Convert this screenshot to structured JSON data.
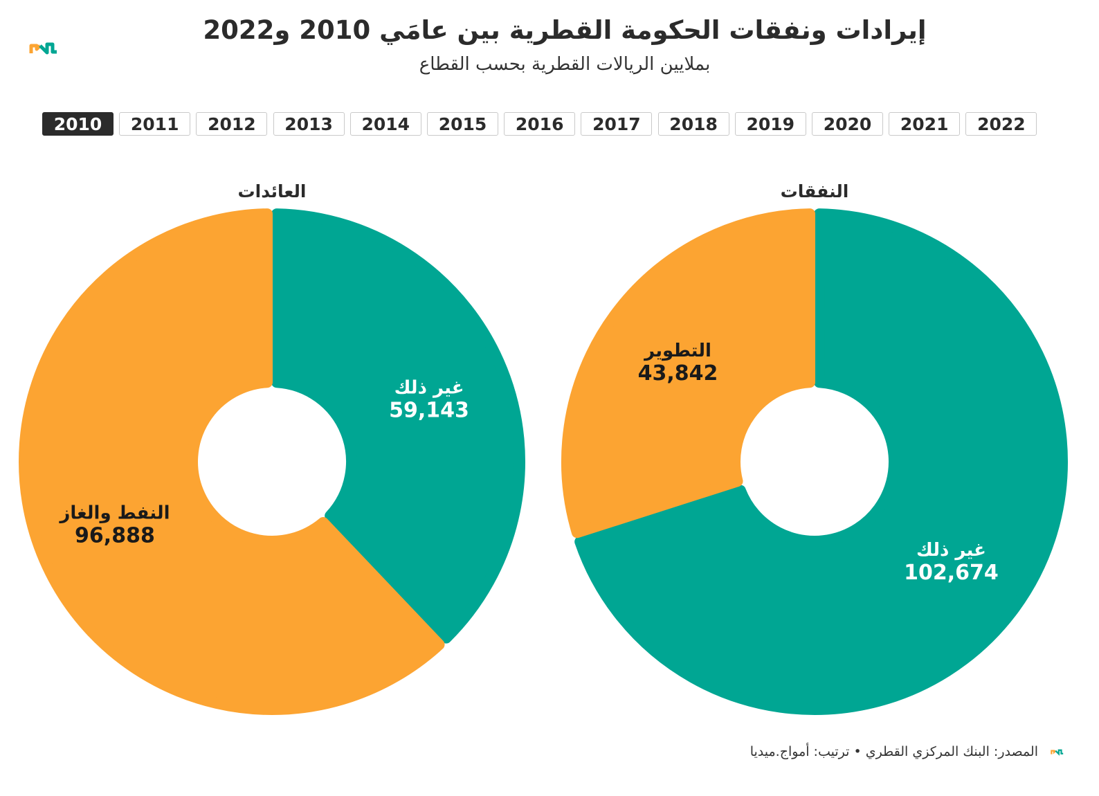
{
  "title": "إيرادات ونفقات الحكومة القطرية بين عامَي 2010 و2022",
  "subtitle": "بملايين الريالات القطرية بحسب القطاع",
  "years": [
    "2010",
    "2011",
    "2012",
    "2013",
    "2014",
    "2015",
    "2016",
    "2017",
    "2018",
    "2019",
    "2020",
    "2021",
    "2022"
  ],
  "selected_year": "2010",
  "source": "المصدر: البنك المركزي القطري • ترتيب: أمواج.ميديا",
  "colors": {
    "teal": "#00A693",
    "orange": "#FCA432",
    "dark": "#2B2B2B"
  },
  "logo_icon": "amwaj-logo-icon",
  "chart_data": [
    {
      "type": "pie",
      "title": "العائدات",
      "slices": [
        {
          "label": "غير ذلك",
          "value": 59143,
          "value_text": "59,143",
          "color": "#00A693",
          "text_color": "#ffffff"
        },
        {
          "label": "النفط والغاز",
          "value": 96888,
          "value_text": "96,888",
          "color": "#FCA432",
          "text_color": "#1a1a1a"
        }
      ]
    },
    {
      "type": "pie",
      "title": "النفقات",
      "slices": [
        {
          "label": "غير ذلك",
          "value": 102674,
          "value_text": "102,674",
          "color": "#00A693",
          "text_color": "#ffffff"
        },
        {
          "label": "التطوير",
          "value": 43842,
          "value_text": "43,842",
          "color": "#FCA432",
          "text_color": "#1a1a1a"
        }
      ]
    }
  ]
}
